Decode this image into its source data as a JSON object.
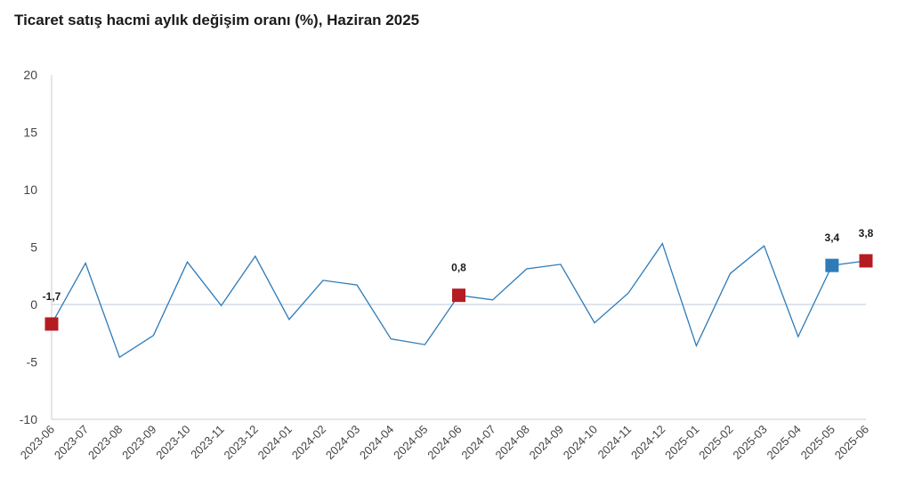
{
  "title": "Ticaret satış hacmi aylık değişim oranı (%), Haziran 2025",
  "colors": {
    "line": "#2e7bb8",
    "highlight_red": "#b51c22",
    "highlight_blue": "#2e7bb8",
    "zero_line": "#d4dce8",
    "axis": "#cccccc"
  },
  "chart_data": {
    "type": "line",
    "title": "Ticaret satış hacmi aylık değişim oranı (%), Haziran 2025",
    "xlabel": "",
    "ylabel": "",
    "ylim": [
      -10,
      20
    ],
    "yticks": [
      -10,
      -5,
      0,
      5,
      10,
      15,
      20
    ],
    "ytick_labels": [
      "-10",
      "-5",
      "0",
      "5",
      "10",
      "15",
      "20"
    ],
    "grid": false,
    "categories": [
      "2023-06",
      "2023-07",
      "2023-08",
      "2023-09",
      "2023-10",
      "2023-11",
      "2023-12",
      "2024-01",
      "2024-02",
      "2024-03",
      "2024-04",
      "2024-05",
      "2024-06",
      "2024-07",
      "2024-08",
      "2024-09",
      "2024-10",
      "2024-11",
      "2024-12",
      "2025-01",
      "2025-02",
      "2025-03",
      "2025-04",
      "2025-05",
      "2025-06"
    ],
    "values": [
      -1.7,
      3.6,
      -4.6,
      -2.7,
      3.7,
      -0.1,
      4.2,
      -1.3,
      2.1,
      1.7,
      -3.0,
      -3.5,
      0.8,
      0.4,
      3.1,
      3.5,
      -1.6,
      1.0,
      5.3,
      -3.6,
      2.7,
      5.1,
      -2.8,
      3.4,
      3.8
    ],
    "highlights": [
      {
        "index": 0,
        "label": "-1,7",
        "color": "#b51c22"
      },
      {
        "index": 12,
        "label": "0,8",
        "color": "#b51c22"
      },
      {
        "index": 23,
        "label": "3,4",
        "color": "#2e7bb8"
      },
      {
        "index": 24,
        "label": "3,8",
        "color": "#b51c22"
      }
    ]
  }
}
